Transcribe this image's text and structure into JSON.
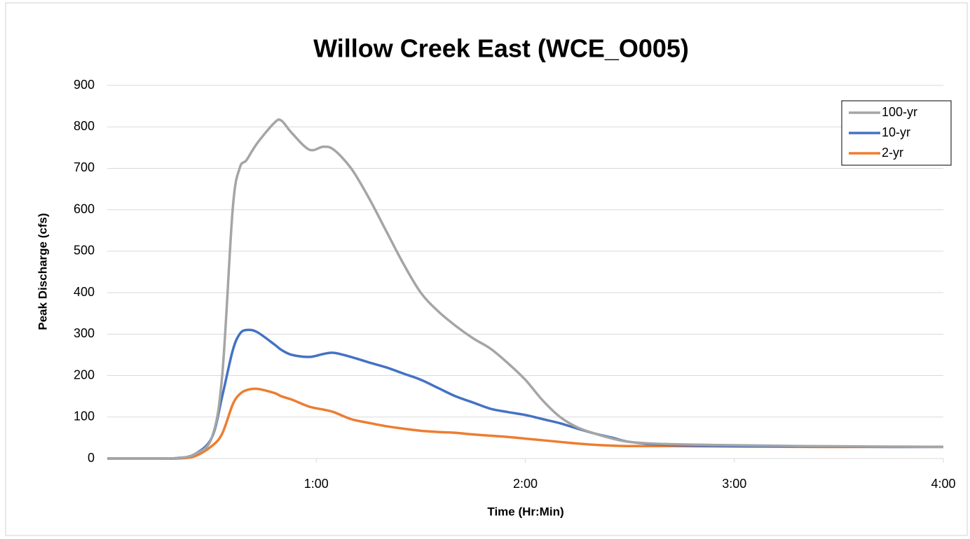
{
  "chart_data": {
    "type": "line",
    "title": "Willow Creek East (WCE_O005)",
    "x_label": "Time (Hr:Min)",
    "y_label": "Peak Discharge (cfs)",
    "x": [
      0,
      5,
      10,
      15,
      20,
      25,
      30,
      33,
      36,
      38,
      40,
      43,
      48,
      50,
      53,
      58,
      62,
      65,
      70,
      75,
      80,
      85,
      90,
      95,
      100,
      105,
      110,
      115,
      120,
      125,
      130,
      135,
      140,
      145,
      150,
      160,
      180,
      200,
      220,
      240
    ],
    "series": [
      {
        "name": "100-yr",
        "color": "#a5a5a5",
        "values": [
          0,
          0,
          0,
          0,
          1,
          10,
          50,
          200,
          600,
          700,
          720,
          760,
          810,
          815,
          785,
          745,
          752,
          745,
          700,
          630,
          550,
          470,
          400,
          355,
          320,
          290,
          265,
          230,
          190,
          140,
          100,
          75,
          60,
          48,
          40,
          35,
          32,
          30,
          29,
          28
        ]
      },
      {
        "name": "10-yr",
        "color": "#4472c4",
        "values": [
          0,
          0,
          0,
          0,
          1,
          10,
          50,
          150,
          260,
          300,
          310,
          305,
          275,
          262,
          250,
          245,
          252,
          255,
          245,
          232,
          220,
          205,
          190,
          170,
          150,
          135,
          120,
          112,
          105,
          95,
          85,
          72,
          60,
          50,
          40,
          33,
          30,
          29,
          28,
          28
        ]
      },
      {
        "name": "2-yr",
        "color": "#ed7d31",
        "values": [
          0,
          0,
          0,
          0,
          0,
          5,
          30,
          60,
          130,
          155,
          165,
          168,
          158,
          150,
          142,
          125,
          118,
          112,
          95,
          86,
          78,
          72,
          67,
          64,
          62,
          58,
          55,
          52,
          48,
          44,
          40,
          36,
          33,
          31,
          30,
          30,
          29,
          28,
          28,
          28
        ]
      }
    ],
    "xlim": [
      0,
      240
    ],
    "xticks": [
      {
        "value": 60,
        "label": "1:00"
      },
      {
        "value": 120,
        "label": "2:00"
      },
      {
        "value": 180,
        "label": "3:00"
      },
      {
        "value": 240,
        "label": "4:00"
      }
    ],
    "ylim": [
      0,
      900
    ],
    "yticks": [
      0,
      100,
      200,
      300,
      400,
      500,
      600,
      700,
      800,
      900
    ],
    "grid": true,
    "legend": "top-right"
  }
}
